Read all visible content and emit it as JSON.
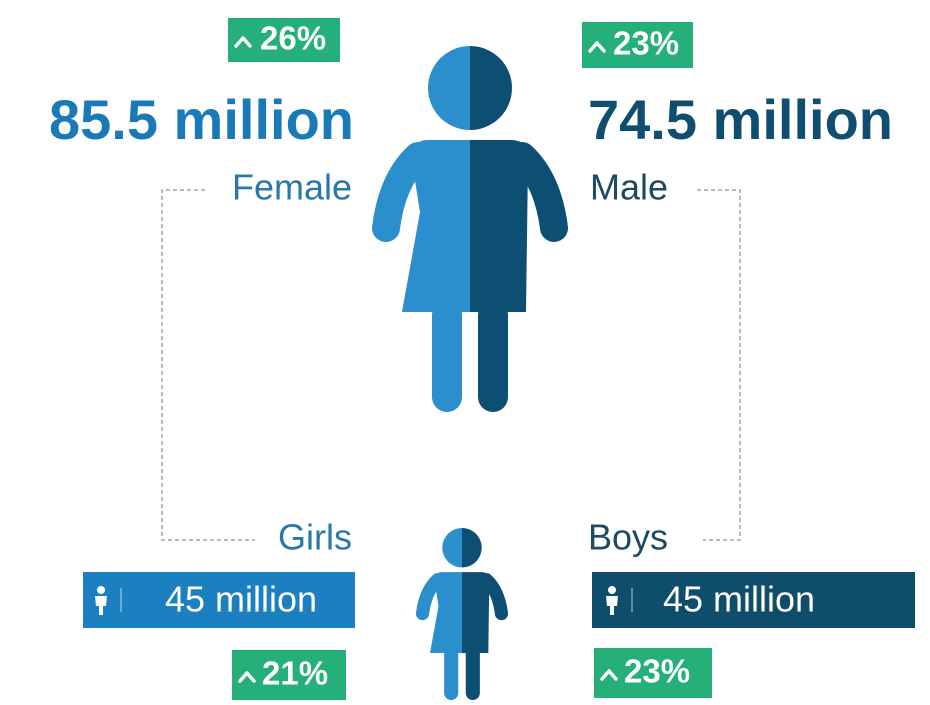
{
  "female": {
    "growth": "26%",
    "total": "85.5 million",
    "label": "Female"
  },
  "male": {
    "growth": "23%",
    "total": "74.5 million",
    "label": "Male"
  },
  "girls": {
    "label": "Girls",
    "total": "45 million",
    "growth": "21%"
  },
  "boys": {
    "label": "Boys",
    "total": "45 million",
    "growth": "23%"
  }
}
